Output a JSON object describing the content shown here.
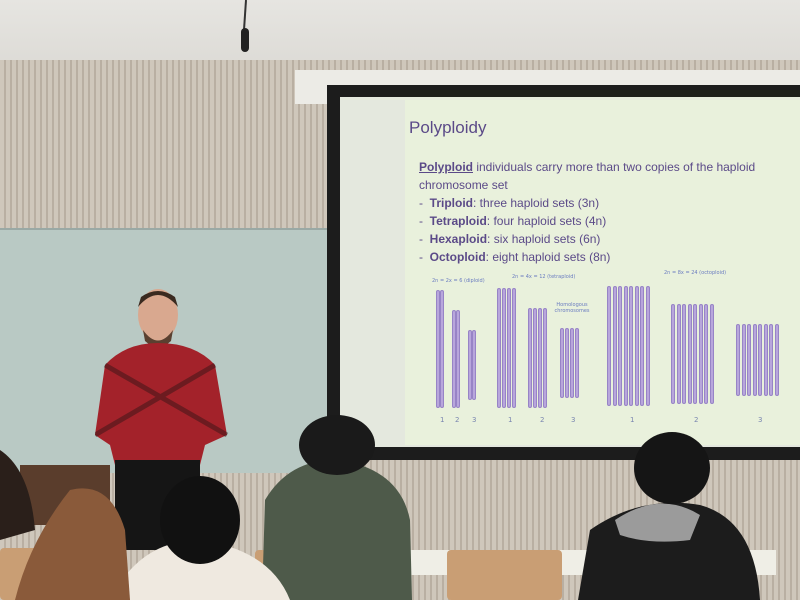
{
  "slide": {
    "title": "Polyploidy",
    "intro_term": "Polyploid",
    "intro_text": " individuals carry more than two copies of the haploid chromosome set",
    "items": [
      {
        "term": "Triploid",
        "text": ": three haploid sets (3n)"
      },
      {
        "term": "Tetraploid",
        "text": ": four haploid sets (4n)"
      },
      {
        "term": "Hexaploid",
        "text": ": six haploid sets (6n)"
      },
      {
        "term": "Octoploid",
        "text": ": eight haploid sets (8n)"
      }
    ],
    "figure": {
      "groups": [
        {
          "label": "2n = 2x = 6 (diploid)",
          "copies": 2,
          "numbers": [
            "1",
            "2",
            "3"
          ]
        },
        {
          "label": "2n = 4x = 12 (tetraploid)",
          "copies": 4,
          "numbers": [
            "1",
            "2",
            "3"
          ]
        },
        {
          "label": "2n = 8x = 24 (octoploid)",
          "copies": 8,
          "numbers": [
            "1",
            "2",
            "3"
          ]
        }
      ],
      "annotation": "Homologous chromosomes"
    }
  },
  "colors": {
    "slide_text": "#5b4a88",
    "chromosome": "#b8a6dc",
    "shirt": "#a3222a"
  }
}
